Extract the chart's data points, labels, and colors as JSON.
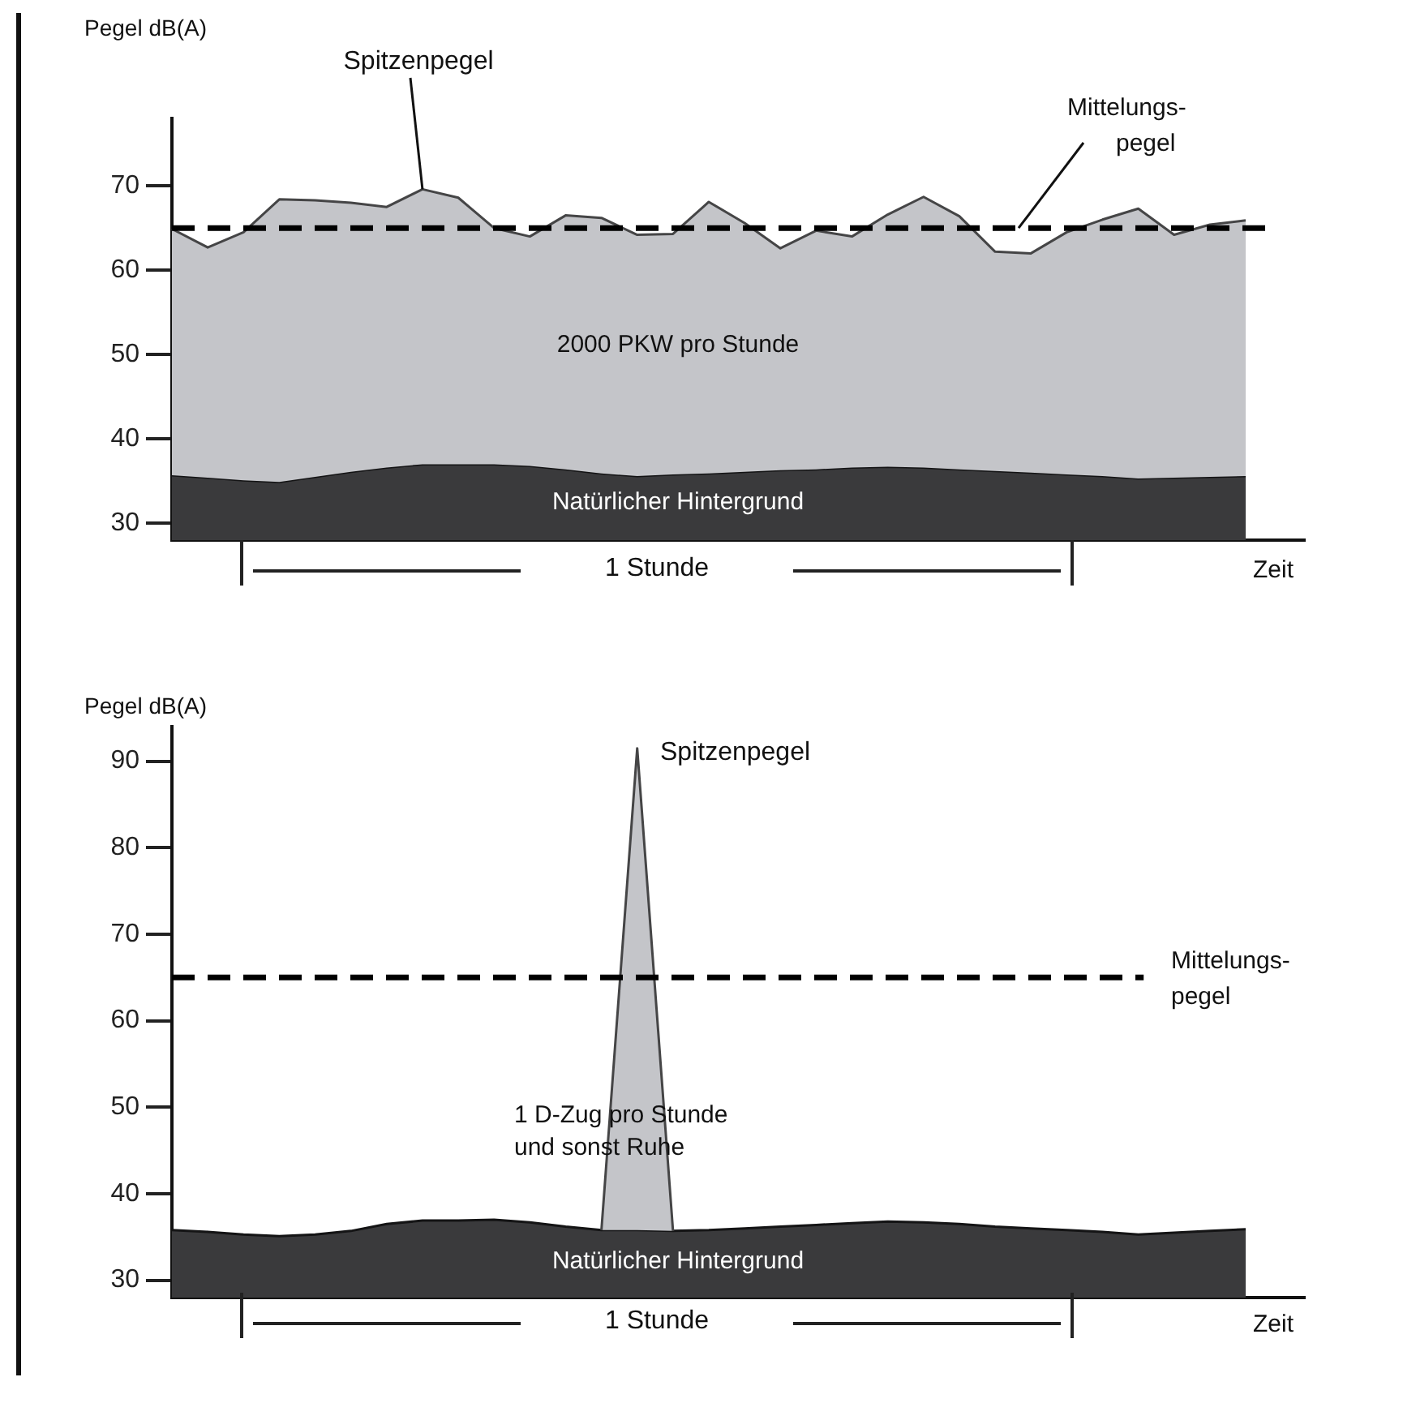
{
  "chart_data": [
    {
      "type": "area",
      "ylabel": "Pegel dB(A)",
      "xlabel": "Zeit",
      "categories": [
        null,
        null,
        null,
        null,
        null,
        null,
        null,
        null,
        null,
        null,
        null,
        null,
        null,
        null,
        null,
        null,
        null,
        null,
        null,
        null,
        null,
        null,
        null,
        null,
        null,
        null,
        null,
        null,
        null,
        null,
        null
      ],
      "series": [
        {
          "name": "2000 PKW pro Stunde",
          "color": "#c4c5c9",
          "values": [
            64.9,
            62.7,
            64.5,
            68.4,
            68.3,
            68,
            67.5,
            69.6,
            68.6,
            65,
            64,
            66.5,
            66.2,
            64.2,
            64.3,
            68.1,
            65.6,
            62.6,
            64.7,
            64,
            66.6,
            68.7,
            66.4,
            62.2,
            62,
            64.5,
            66,
            67.3,
            64.2,
            65.4,
            65.9
          ]
        },
        {
          "name": "Natürlicher Hintergrund",
          "color": "#3a3a3c",
          "values": [
            35.7,
            35.4,
            35.1,
            34.9,
            35.5,
            36.1,
            36.6,
            37,
            37,
            37,
            36.8,
            36.4,
            35.9,
            35.6,
            35.8,
            35.9,
            36.1,
            36.3,
            36.4,
            36.6,
            36.7,
            36.6,
            36.4,
            36.2,
            36,
            35.8,
            35.6,
            35.3,
            35.4,
            35.5,
            35.6
          ]
        }
      ],
      "ylim": [
        28,
        78
      ],
      "yticks": [
        30,
        40,
        50,
        60,
        70
      ],
      "tick_labels": "y",
      "ref_lines": [
        {
          "axis": "y",
          "value": 65,
          "label": "Mittelungs-\npegel",
          "color": "#000000",
          "line_style": "dashed"
        }
      ],
      "annotations": [
        "Spitzenpegel",
        "1 Stunde"
      ]
    },
    {
      "type": "area",
      "ylabel": "Pegel dB(A)",
      "xlabel": "Zeit",
      "categories": [
        null,
        null,
        null,
        null,
        null,
        null,
        null,
        null,
        null,
        null,
        null,
        null,
        null,
        null,
        null,
        null,
        null,
        null,
        null,
        null,
        null,
        null,
        null,
        null,
        null,
        null,
        null,
        null,
        null,
        null,
        null
      ],
      "series": [
        {
          "name": "1 D-Zug pro Stunde\nund sonst Ruhe",
          "color": "#c4c5c9",
          "values": [
            null,
            null,
            null,
            null,
            null,
            null,
            null,
            null,
            null,
            null,
            null,
            null,
            35.8,
            91.5,
            35.7,
            null,
            null,
            null,
            null,
            null,
            null,
            null,
            null,
            null,
            null,
            null,
            null,
            null,
            null,
            null,
            null
          ]
        },
        {
          "name": "Natürlicher Hintergrund",
          "color": "#3a3a3c",
          "values": [
            35.8,
            35.6,
            35.3,
            35.1,
            35.3,
            35.7,
            36.5,
            36.9,
            36.9,
            37,
            36.7,
            36.2,
            35.8,
            35.8,
            35.7,
            35.8,
            36,
            36.2,
            36.4,
            36.6,
            36.8,
            36.7,
            36.5,
            36.2,
            36,
            35.8,
            35.6,
            35.3,
            35.5,
            35.7,
            35.9
          ]
        }
      ],
      "ylim": [
        28,
        94
      ],
      "yticks": [
        30,
        40,
        50,
        60,
        70,
        80,
        90
      ],
      "tick_labels": "y",
      "ref_lines": [
        {
          "axis": "y",
          "value": 65,
          "label": "Mittelungs-\npegel",
          "color": "#000000",
          "line_style": "dashed"
        }
      ],
      "annotations": [
        "Spitzenpegel",
        "1 Stunde"
      ]
    }
  ]
}
